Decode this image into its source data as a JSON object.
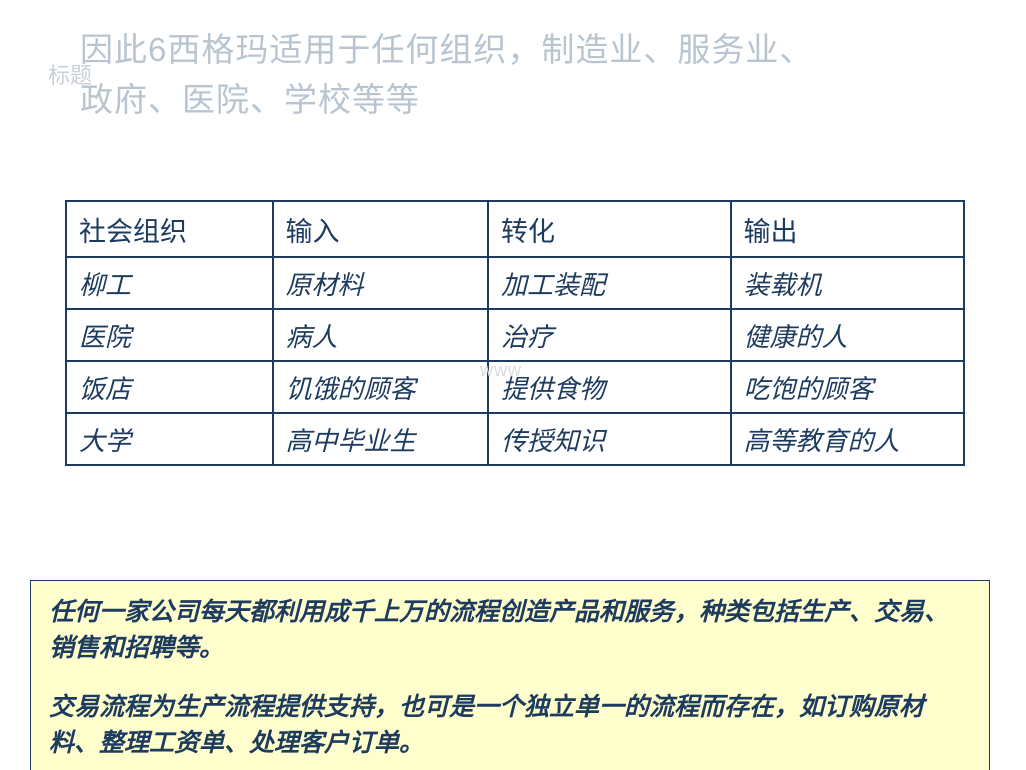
{
  "header": {
    "title_line1": "因此6西格玛适用于任何组织，制造业、服务业、",
    "title_line2": "政府、医院、学校等等",
    "placeholder_label": "标题"
  },
  "table": {
    "columns": [
      "社会组织",
      "输入",
      "转化",
      "输出"
    ],
    "rows": [
      [
        "柳工",
        "原材料",
        "加工装配",
        "装载机"
      ],
      [
        "医院",
        "病人",
        "治疗",
        "健康的人"
      ],
      [
        "饭店",
        "饥饿的顾客",
        "提供食物",
        "吃饱的顾客"
      ],
      [
        "大学",
        "高中毕业生",
        "传授知识",
        "高等教育的人"
      ]
    ],
    "border_color": "#1d3a5f",
    "text_color": "#1d3a5f",
    "header_fontsize": 27,
    "cell_fontsize": 26,
    "col_widths_pct": [
      23,
      24,
      27,
      26
    ]
  },
  "watermark": "www",
  "notes": {
    "background_color": "#feffcc",
    "border_color": "#1d3a5f",
    "text_color": "#1d3a5f",
    "fontsize": 25,
    "para1": "任何一家公司每天都利用成千上万的流程创造产品和服务，种类包括生产、交易、销售和招聘等。",
    "para2": "交易流程为生产流程提供支持，也可是一个独立单一的流程而存在，如订购原材料、整理工资单、处理客户订单。"
  },
  "colors": {
    "ghost_text": "#b8c4d0",
    "background": "#ffffff"
  }
}
